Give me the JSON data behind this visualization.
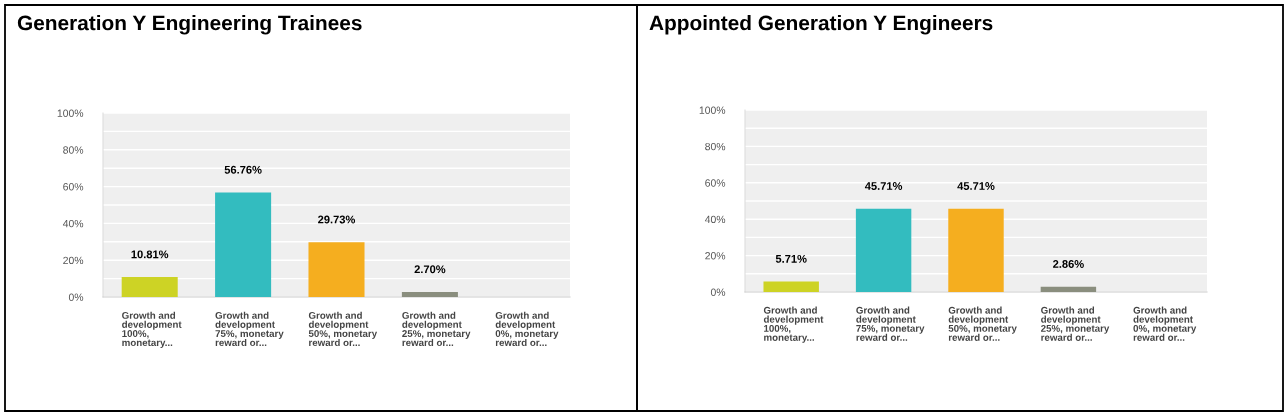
{
  "chart_data": [
    {
      "type": "bar",
      "title": "Generation Y Engineering Trainees",
      "categories": [
        "Growth and\ndevelopment\n100%,\nmonetary...",
        "Growth and\ndevelopment\n75%, monetary\nreward or...",
        "Growth and\ndevelopment\n50%, monetary\nreward or...",
        "Growth and\ndevelopment\n25%, monetary\nreward or...",
        "Growth and\ndevelopment\n0%, monetary\nreward or..."
      ],
      "values": [
        10.81,
        56.76,
        29.73,
        2.7,
        0
      ],
      "value_labels": [
        "10.81%",
        "56.76%",
        "29.73%",
        "2.70%",
        null
      ],
      "colors": [
        "#cdd325",
        "#33bcbf",
        "#f5ae1f",
        "#8a8e7e",
        "#cccccc"
      ],
      "ylim": [
        0,
        100
      ],
      "yticks": [
        {
          "value": 0,
          "label": "0%"
        },
        {
          "value": 10,
          "label": null
        },
        {
          "value": 20,
          "label": "20%"
        },
        {
          "value": 30,
          "label": null
        },
        {
          "value": 40,
          "label": "40%"
        },
        {
          "value": 50,
          "label": null
        },
        {
          "value": 60,
          "label": "60%"
        },
        {
          "value": 70,
          "label": null
        },
        {
          "value": 80,
          "label": "80%"
        },
        {
          "value": 90,
          "label": null
        },
        {
          "value": 100,
          "label": "100%"
        }
      ],
      "grid": "y"
    },
    {
      "type": "bar",
      "title": "Appointed Generation Y Engineers",
      "categories": [
        "Growth and\ndevelopment\n100%,\nmonetary...",
        "Growth and\ndevelopment\n75%, monetary\nreward or...",
        "Growth and\ndevelopment\n50%, monetary\nreward or...",
        "Growth and\ndevelopment\n25%, monetary\nreward or...",
        "Growth and\ndevelopment\n0%, monetary\nreward or..."
      ],
      "values": [
        5.71,
        45.71,
        45.71,
        2.86,
        0
      ],
      "value_labels": [
        "5.71%",
        "45.71%",
        "45.71%",
        "2.86%",
        null
      ],
      "colors": [
        "#cdd325",
        "#33bcbf",
        "#f5ae1f",
        "#8a8e7e",
        "#cccccc"
      ],
      "ylim": [
        0,
        100
      ],
      "yticks": [
        {
          "value": 0,
          "label": "0%"
        },
        {
          "value": 10,
          "label": null
        },
        {
          "value": 20,
          "label": "20%"
        },
        {
          "value": 30,
          "label": null
        },
        {
          "value": 40,
          "label": "40%"
        },
        {
          "value": 50,
          "label": null
        },
        {
          "value": 60,
          "label": "60%"
        },
        {
          "value": 70,
          "label": null
        },
        {
          "value": 80,
          "label": "80%"
        },
        {
          "value": 90,
          "label": null
        },
        {
          "value": 100,
          "label": "100%"
        }
      ],
      "grid": "y"
    }
  ]
}
